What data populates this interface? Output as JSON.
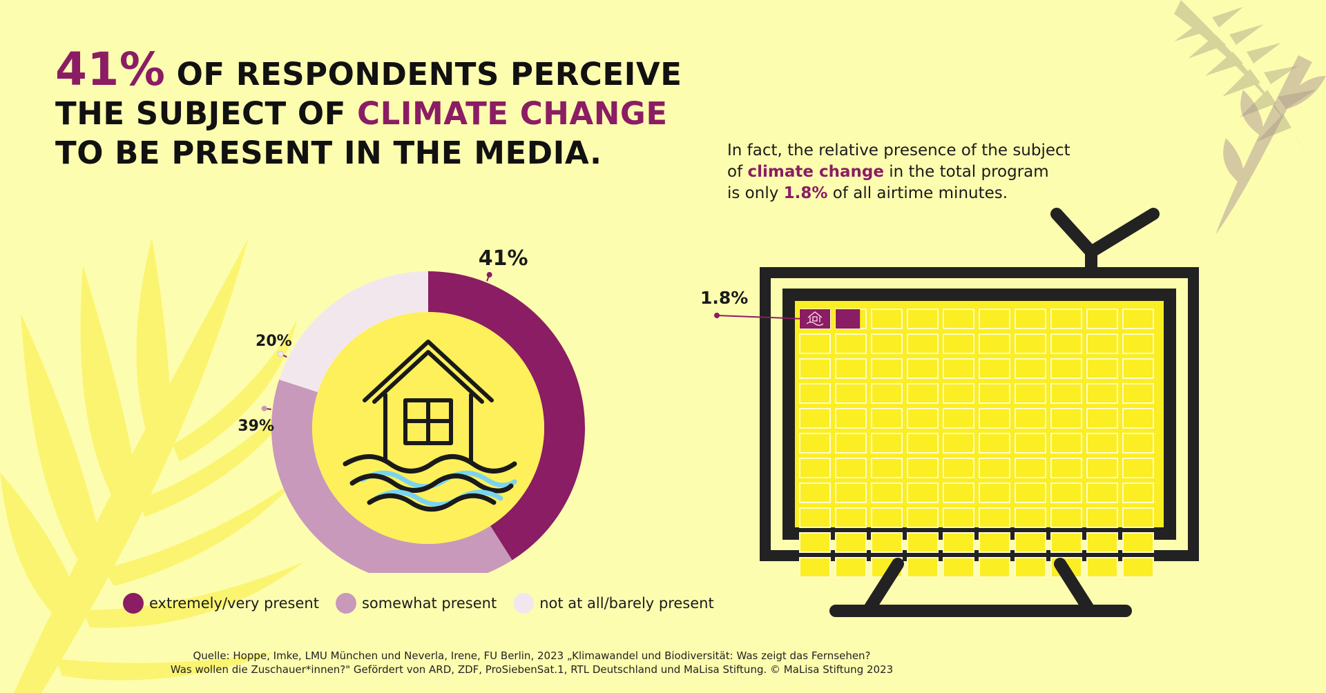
{
  "headline": {
    "pct": "41%",
    "part1": " OF RESPONDENTS PERCEIVE",
    "part2_a": "THE SUBJECT OF ",
    "part2_b": "CLIMATE CHANGE",
    "part3": "TO BE PRESENT IN THE MEDIA."
  },
  "subtext": {
    "line1": "In fact, the relative presence of the subject",
    "line2_a": "of ",
    "line2_b": "climate change",
    "line2_c": " in the total program",
    "line3_a": "is only ",
    "line3_b": "1.8%",
    "line3_c": " of all airtime minutes."
  },
  "tv": {
    "label": "1.8%",
    "grid_cols": 10,
    "grid_rows": 11,
    "highlighted_cells": 1.8
  },
  "legend": [
    {
      "label": "extremely/very present",
      "color": "#8a1d63"
    },
    {
      "label": "somewhat present",
      "color": "#c899bb"
    },
    {
      "label": "not at all/barely present",
      "color": "#f3e7ee"
    }
  ],
  "source": {
    "line1": "Quelle: Hoppe, Imke, LMU München und Neverla, Irene, FU Berlin, 2023 „Klimawandel und Biodiversität: Was zeigt das Fernsehen?",
    "line2": "Was wollen die Zuschauer*innen?\" Gefördert von ARD, ZDF, ProSiebenSat.1, RTL Deutschland und MaLisa Stiftung. © MaLisa Stiftung 2023"
  },
  "colors": {
    "background": "#fdfdb0",
    "dark_purple": "#8a1d63",
    "mid_purple": "#c899bb",
    "light_purple": "#f3e7ee",
    "yellow": "#fcee21",
    "inner_yellow": "#fdf05a",
    "water_blue": "#7ad4f0",
    "tv_frame": "#222222"
  },
  "chart_data": [
    {
      "type": "pie",
      "categories": [
        "extremely/very present",
        "somewhat present",
        "not at all/barely present"
      ],
      "values": [
        41,
        39,
        20
      ],
      "data_labels": [
        "41%",
        "39%",
        "20%"
      ],
      "legend": "bottom",
      "center_icon": "flooded-house-icon"
    },
    {
      "type": "table",
      "categories": [
        "climate change"
      ],
      "values": [
        1.8
      ],
      "data_labels": [
        "1.8%"
      ],
      "center_icon": "tv-icon"
    }
  ]
}
